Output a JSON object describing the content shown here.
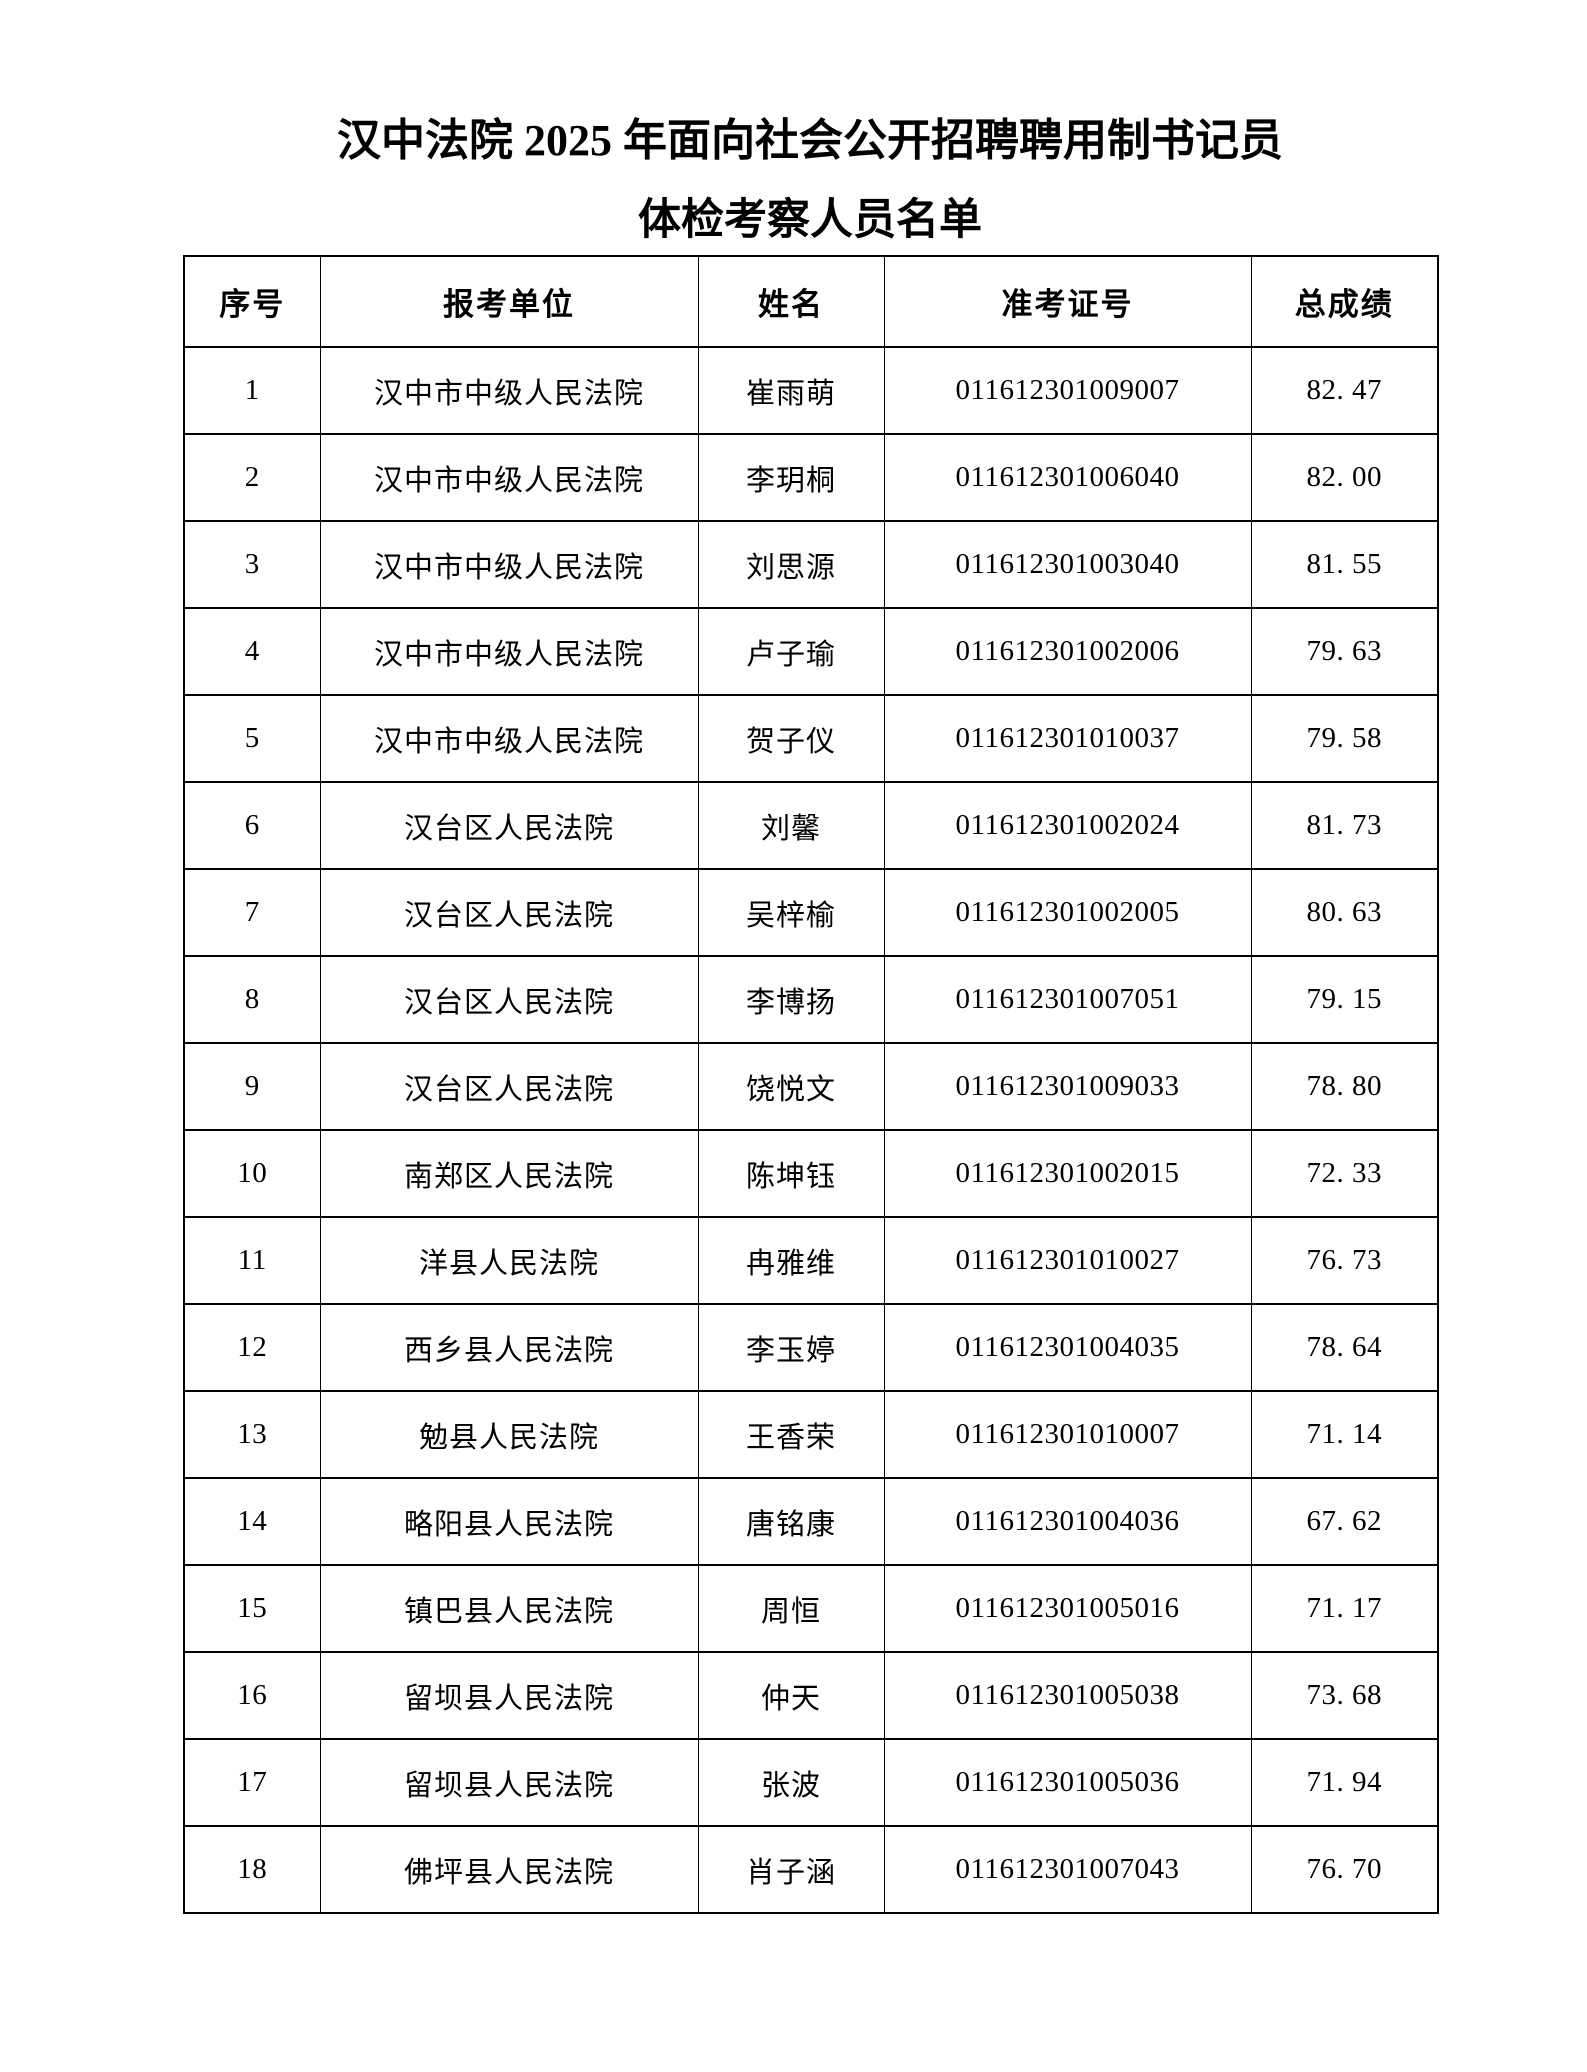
{
  "document": {
    "title_line1": "汉中法院 2025 年面向社会公开招聘聘用制书记员",
    "title_line2": "体检考察人员名单"
  },
  "table": {
    "columns": [
      "序号",
      "报考单位",
      "姓名",
      "准考证号",
      "总成绩"
    ],
    "rows": [
      {
        "index": "1",
        "unit": "汉中市中级人民法院",
        "name": "崔雨萌",
        "ticket": "011612301009007",
        "score": "82.47"
      },
      {
        "index": "2",
        "unit": "汉中市中级人民法院",
        "name": "李玥桐",
        "ticket": "011612301006040",
        "score": "82.00"
      },
      {
        "index": "3",
        "unit": "汉中市中级人民法院",
        "name": "刘思源",
        "ticket": "011612301003040",
        "score": "81.55"
      },
      {
        "index": "4",
        "unit": "汉中市中级人民法院",
        "name": "卢子瑜",
        "ticket": "011612301002006",
        "score": "79.63"
      },
      {
        "index": "5",
        "unit": "汉中市中级人民法院",
        "name": "贺子仪",
        "ticket": "011612301010037",
        "score": "79.58"
      },
      {
        "index": "6",
        "unit": "汉台区人民法院",
        "name": "刘馨",
        "ticket": "011612301002024",
        "score": "81.73"
      },
      {
        "index": "7",
        "unit": "汉台区人民法院",
        "name": "吴梓榆",
        "ticket": "011612301002005",
        "score": "80.63"
      },
      {
        "index": "8",
        "unit": "汉台区人民法院",
        "name": "李博扬",
        "ticket": "011612301007051",
        "score": "79.15"
      },
      {
        "index": "9",
        "unit": "汉台区人民法院",
        "name": "饶悦文",
        "ticket": "011612301009033",
        "score": "78.80"
      },
      {
        "index": "10",
        "unit": "南郑区人民法院",
        "name": "陈坤钰",
        "ticket": "011612301002015",
        "score": "72.33"
      },
      {
        "index": "11",
        "unit": "洋县人民法院",
        "name": "冉雅维",
        "ticket": "011612301010027",
        "score": "76.73"
      },
      {
        "index": "12",
        "unit": "西乡县人民法院",
        "name": "李玉婷",
        "ticket": "011612301004035",
        "score": "78.64"
      },
      {
        "index": "13",
        "unit": "勉县人民法院",
        "name": "王香荣",
        "ticket": "011612301010007",
        "score": "71.14"
      },
      {
        "index": "14",
        "unit": "略阳县人民法院",
        "name": "唐铭康",
        "ticket": "011612301004036",
        "score": "67.62"
      },
      {
        "index": "15",
        "unit": "镇巴县人民法院",
        "name": "周恒",
        "ticket": "011612301005016",
        "score": "71.17"
      },
      {
        "index": "16",
        "unit": "留坝县人民法院",
        "name": "仲天",
        "ticket": "011612301005038",
        "score": "73.68"
      },
      {
        "index": "17",
        "unit": "留坝县人民法院",
        "name": "张波",
        "ticket": "011612301005036",
        "score": "71.94"
      },
      {
        "index": "18",
        "unit": "佛坪县人民法院",
        "name": "肖子涵",
        "ticket": "011612301007043",
        "score": "76.70"
      }
    ]
  },
  "colors": {
    "background": "#ffffff",
    "text": "#000000",
    "border": "#000000"
  }
}
